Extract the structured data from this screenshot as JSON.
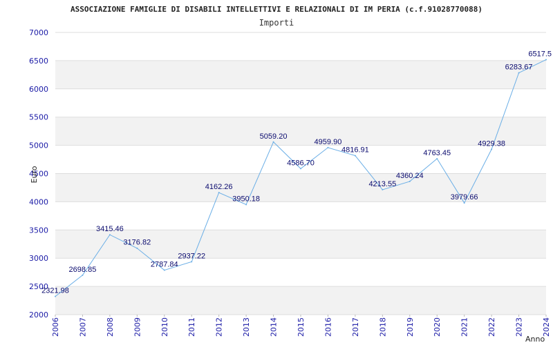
{
  "chart_data": {
    "type": "line",
    "title": "ASSOCIAZIONE FAMIGLIE DI DISABILI INTELLETTIVI E RELAZIONALI DI IM PERIA (c.f.91028770088)",
    "subtitle": "Importi",
    "xlabel": "Anno",
    "ylabel": "Euro",
    "categories": [
      "2006",
      "2007",
      "2008",
      "2009",
      "2010",
      "2011",
      "2012",
      "2013",
      "2014",
      "2015",
      "2016",
      "2017",
      "2018",
      "2019",
      "2020",
      "2021",
      "2022",
      "2023",
      "2024"
    ],
    "series": [
      {
        "values": [
          2321.98,
          2698.85,
          3415.46,
          3176.82,
          2787.84,
          2937.22,
          4162.26,
          3950.18,
          5059.2,
          4586.7,
          4959.9,
          4816.91,
          4213.55,
          4360.24,
          4763.45,
          3979.66,
          4929.38,
          6283.67,
          6517.5
        ],
        "labels": [
          "2321.98",
          "2698.85",
          "3415.46",
          "3176.82",
          "2787.84",
          "2937.22",
          "4162.26",
          "3950.18",
          "5059.20",
          "4586.70",
          "4959.90",
          "4816.91",
          "4213.55",
          "4360.24",
          "4763.45",
          "3979.66",
          "4929.38",
          "6283.67",
          "6517.5"
        ]
      }
    ],
    "y_ticks": [
      "2000",
      "2500",
      "3000",
      "3500",
      "4000",
      "4500",
      "5000",
      "5500",
      "6000",
      "6500",
      "7000"
    ],
    "ylim": [
      2000,
      7000
    ],
    "grid": true,
    "line_color": "#6aaee6",
    "band_color": "#f2f2f2",
    "tick_color": "#1a1aa6",
    "label_color": "#0a0a6e"
  }
}
